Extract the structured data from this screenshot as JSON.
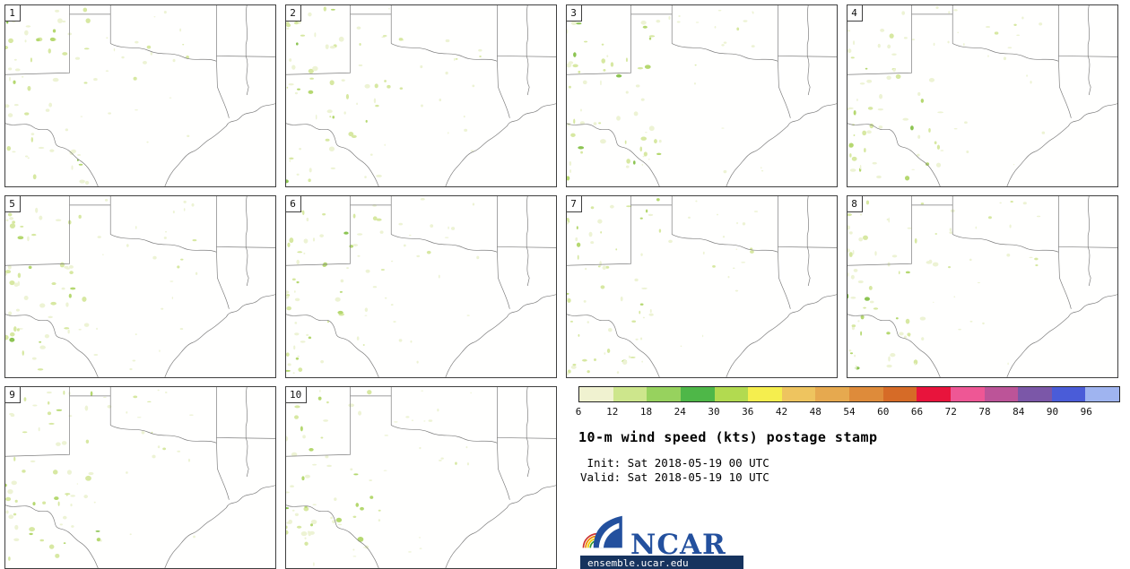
{
  "product": {
    "title": "10-m wind speed (kts) postage stamp",
    "init_line": " Init: Sat 2018-05-19 00 UTC",
    "valid_line": "Valid: Sat 2018-05-19 10 UTC",
    "site_url": "ensemble.ucar.edu",
    "logo_text": "NCAR"
  },
  "panels": [
    {
      "label": "1"
    },
    {
      "label": "2"
    },
    {
      "label": "3"
    },
    {
      "label": "4"
    },
    {
      "label": "5"
    },
    {
      "label": "6"
    },
    {
      "label": "7"
    },
    {
      "label": "8"
    },
    {
      "label": "9"
    },
    {
      "label": "10"
    }
  ],
  "colorbar": {
    "unit": "kts",
    "ticks": [
      "6",
      "12",
      "18",
      "24",
      "30",
      "36",
      "42",
      "48",
      "54",
      "60",
      "66",
      "72",
      "78",
      "84",
      "90",
      "96"
    ],
    "colors": [
      "#f0f2d0",
      "#cde68c",
      "#97d25e",
      "#4eb748",
      "#b2da50",
      "#f5ee4e",
      "#eec45f",
      "#e6a94f",
      "#de8b3a",
      "#d66b27",
      "#e8143c",
      "#ee5795",
      "#bc5498",
      "#7b57a8",
      "#4a5cd8",
      "#9fb4f0"
    ]
  },
  "map": {
    "border_color": "#7e7e7e",
    "speckle_colors": [
      "#edf3d4",
      "#d7e8a2",
      "#b5d870",
      "#8cc452"
    ],
    "logo_blue": "#23509e"
  }
}
